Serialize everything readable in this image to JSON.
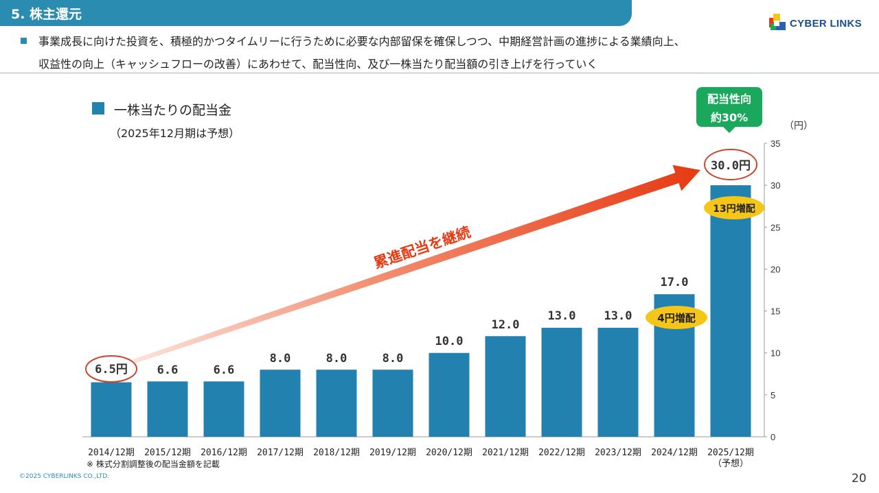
{
  "header": {
    "title": "5. 株主還元",
    "logo_text": "CYBER LINKS"
  },
  "description": {
    "line1": "事業成長に向けた投資を、積極的かつタイムリーに行うために必要な内部留保を確保しつつ、中期経営計画の進捗による業績向上、",
    "line2": "収益性の向上（キャッシュフローの改善）にあわせて、配当性向、及び一株当たり配当額の引き上げを行っていく"
  },
  "legend": {
    "label": "一株当たりの配当金",
    "note": "（2025年12月期は予想）"
  },
  "footnote": "※ 株式分割調整後の配当金額を記載",
  "copyright": "©2025 CYBERLINKS CO.,LTD.",
  "page_number": "20",
  "chart_data": {
    "type": "bar",
    "categories": [
      "2014/12期",
      "2015/12期",
      "2016/12期",
      "2017/12期",
      "2018/12期",
      "2019/12期",
      "2020/12期",
      "2021/12期",
      "2022/12期",
      "2023/12期",
      "2024/12期",
      "2025/12期"
    ],
    "category_sub": [
      "",
      "",
      "",
      "",
      "",
      "",
      "",
      "",
      "",
      "",
      "",
      "（予想）"
    ],
    "values": [
      6.5,
      6.6,
      6.6,
      8.0,
      8.0,
      8.0,
      10.0,
      12.0,
      13.0,
      13.0,
      17.0,
      30.0
    ],
    "value_labels": [
      "6.5円",
      "6.6",
      "6.6",
      "8.0",
      "8.0",
      "8.0",
      "10.0",
      "12.0",
      "13.0",
      "13.0",
      "17.0",
      "30.0円"
    ],
    "ylim": [
      0,
      35
    ],
    "yticks": [
      0,
      5,
      10,
      15,
      20,
      25,
      30,
      35
    ],
    "y_unit": "（円）",
    "bar_color": "#2381b0",
    "arrow_label": "累進配当を継続",
    "badge_increase_2024": "4円増配",
    "badge_increase_2025": "13円増配",
    "payout_badge": [
      "配当性向",
      "約30%"
    ],
    "colors": {
      "badge_yellow": "#f5c518",
      "badge_green": "#1aa85c",
      "arrow": "#e63a12",
      "circle": "#c9452b"
    }
  }
}
